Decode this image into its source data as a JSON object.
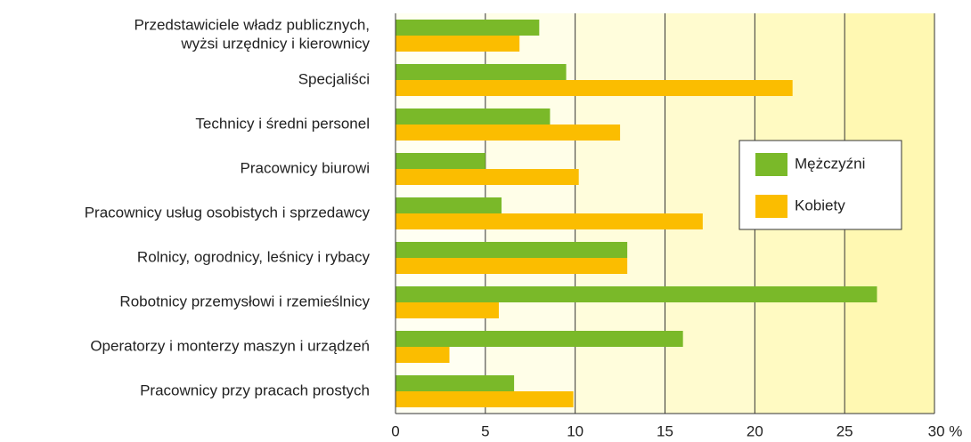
{
  "chart_data": {
    "type": "hbar",
    "categories": [
      "Przedstawiciele władz publicznych,\nwyżsi urzędnicy i kierownicy",
      "Specjaliści",
      "Technicy i średni personel",
      "Pracownicy biurowi",
      "Pracownicy usług osobistych i sprzedawcy",
      "Rolnicy, ogrodnicy, leśnicy i rybacy",
      "Robotnicy przemysłowi i rzemieślnicy",
      "Operatorzy i monterzy maszyn i urządzeń",
      "Pracownicy przy pracach prostych"
    ],
    "series": [
      {
        "name": "Mężczyźni",
        "color": "#7ab929",
        "values": [
          8.0,
          9.5,
          8.6,
          5.0,
          5.9,
          12.9,
          26.8,
          16.0,
          6.6
        ]
      },
      {
        "name": "Kobiety",
        "color": "#fbbd00",
        "values": [
          6.9,
          22.1,
          12.5,
          10.2,
          17.1,
          12.9,
          5.75,
          3.0,
          9.9
        ]
      }
    ],
    "xlim": [
      0,
      30
    ],
    "xticks": [
      0,
      5,
      10,
      15,
      20,
      25,
      {
        "value": 30,
        "label": "30 %"
      }
    ],
    "grid": true,
    "legend": "center right"
  }
}
